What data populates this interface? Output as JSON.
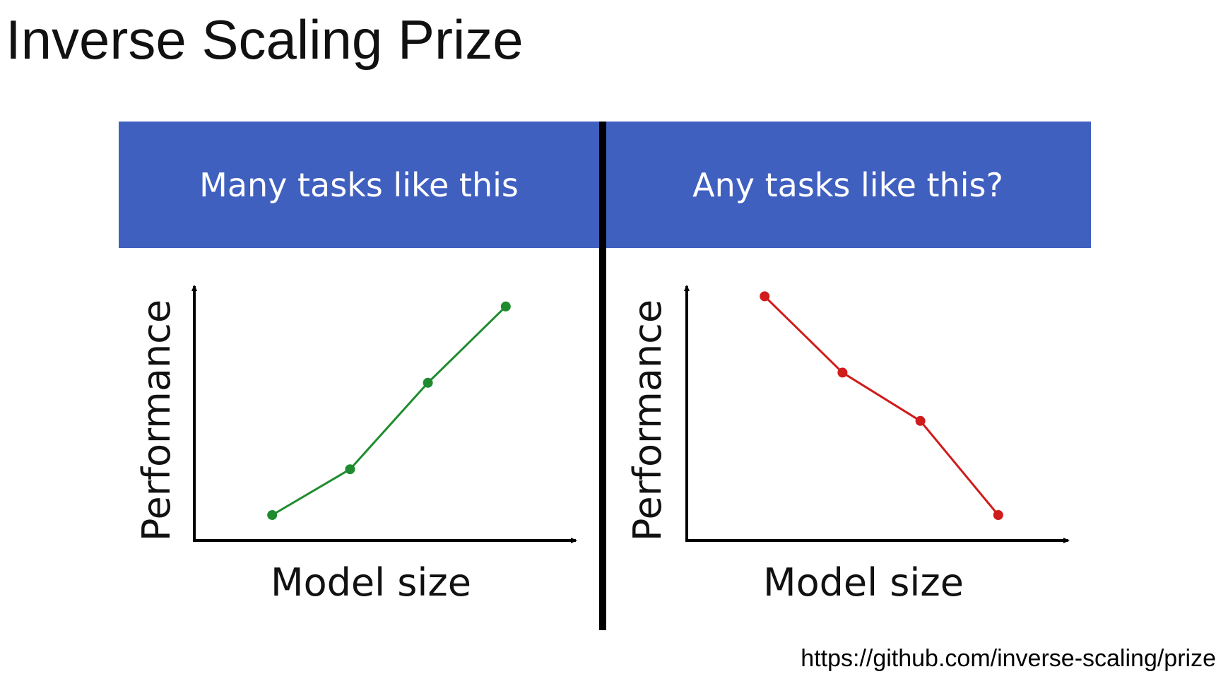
{
  "title": "Inverse Scaling Prize",
  "panels": {
    "left_heading": "Many tasks like this",
    "right_heading": "Any tasks like this?"
  },
  "source_url": "https://github.com/inverse-scaling/prize",
  "colors": {
    "banner": "#4060c0",
    "left_series": "#1e8c2e",
    "right_series": "#d01c1c"
  },
  "chart_data": [
    {
      "type": "line",
      "xlabel": "Model size",
      "ylabel": "Performance",
      "x": [
        1,
        2,
        3,
        4
      ],
      "y": [
        0.1,
        0.28,
        0.62,
        0.92
      ],
      "ylim": [
        0,
        1
      ],
      "xlim": [
        0,
        4.9
      ],
      "grid": false,
      "color": "#1e8c2e"
    },
    {
      "type": "line",
      "xlabel": "Model size",
      "ylabel": "Performance",
      "x": [
        1,
        2,
        3,
        4
      ],
      "y": [
        0.96,
        0.66,
        0.47,
        0.1
      ],
      "ylim": [
        0,
        1
      ],
      "xlim": [
        0,
        4.9
      ],
      "grid": false,
      "color": "#d01c1c"
    }
  ]
}
